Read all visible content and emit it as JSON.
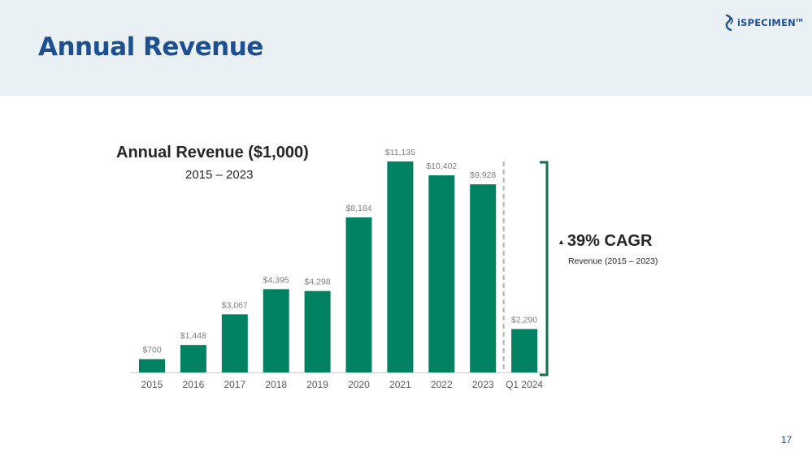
{
  "page": {
    "title": "Annual Revenue",
    "logo_text": "iSPECIMEN",
    "logo_mark": "TM",
    "page_number": "17"
  },
  "colors": {
    "bar": "#008162",
    "title": "#1d4f91",
    "header_band": "#e9f1f4",
    "bracket": "#1b6b4e",
    "separator": "#b3b3b3"
  },
  "chart_data": {
    "type": "bar",
    "title": "Annual Revenue ($1,000)",
    "subtitle": "2015 – 2023",
    "categories": [
      "2015",
      "2016",
      "2017",
      "2018",
      "2019",
      "2020",
      "2021",
      "2022",
      "2023",
      "Q1 2024"
    ],
    "values": [
      700,
      1448,
      3067,
      4395,
      4298,
      8184,
      11135,
      10402,
      9928,
      2290
    ],
    "value_labels": [
      "$700",
      "$1,448",
      "$3,067",
      "$4,395",
      "$4,298",
      "$8,184",
      "$11,135",
      "$10,402",
      "$9,928",
      "$2,290"
    ],
    "ylim": [
      0,
      11135
    ],
    "grid": false,
    "legend": "none",
    "separator_after": "2023"
  },
  "callout": {
    "icon": "triangle-up-icon",
    "arrow": "▲",
    "value": "39% CAGR",
    "note": "Revenue (2015 – 2023)"
  }
}
